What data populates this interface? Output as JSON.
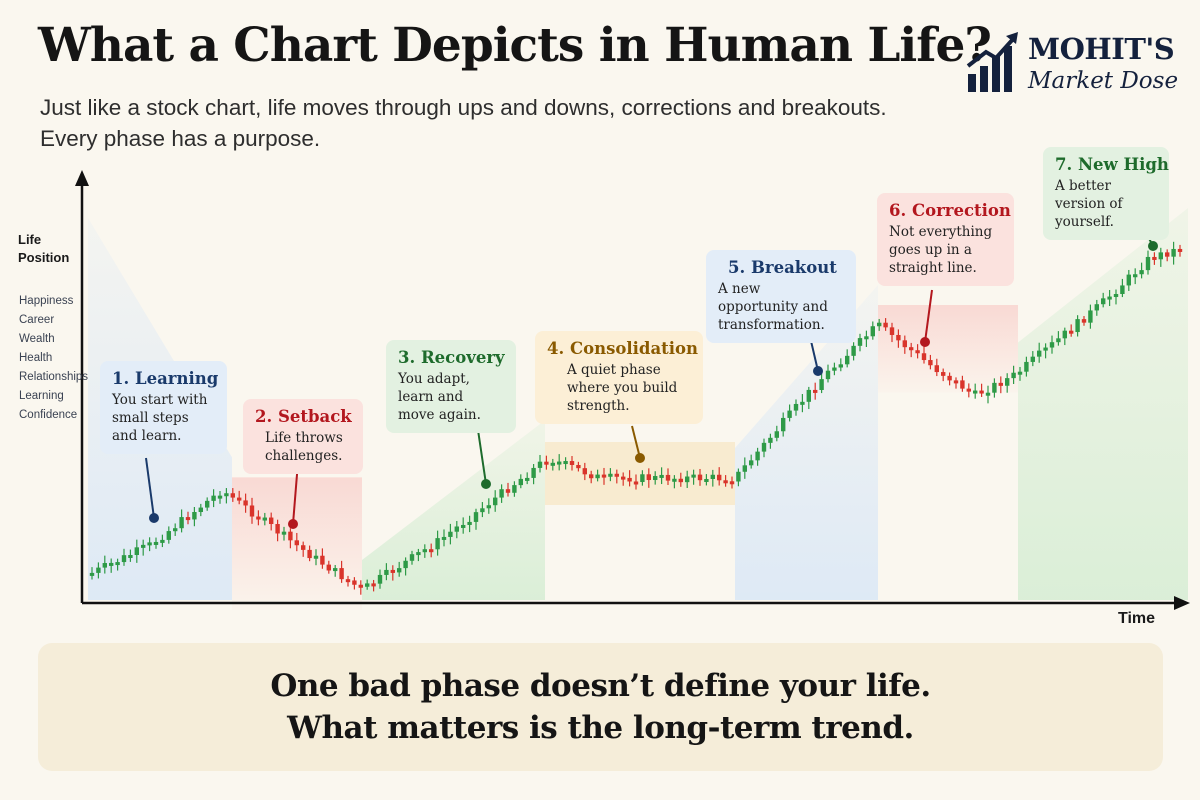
{
  "header": {
    "title": "What a Chart Depicts in Human Life?",
    "subtitle_line1": "Just like a stock chart, life moves through ups and downs, corrections and breakouts.",
    "subtitle_line2": "Every phase has a purpose."
  },
  "logo": {
    "name": "MOHIT'S",
    "sub": "Market Dose",
    "color": "#14213d"
  },
  "chart_data": {
    "type": "candlestick",
    "xlabel": "Time",
    "ylabel": "Life Position",
    "y_dimensions": [
      "Happiness",
      "Career",
      "Wealth",
      "Health",
      "Relationships",
      "Learning",
      "Confidence"
    ],
    "colors": {
      "up": "#2e9a47",
      "down": "#d9342b"
    },
    "grid": false,
    "phases": [
      {
        "id": 1,
        "title": "1. Learning",
        "desc": "You start with small steps and learn.",
        "trend": "up",
        "color": "#1a3a6b",
        "bg": "#e3edf8"
      },
      {
        "id": 2,
        "title": "2. Setback",
        "desc": "Life throws challenges.",
        "trend": "down",
        "color": "#b3171e",
        "bg": "#fbe2de"
      },
      {
        "id": 3,
        "title": "3. Recovery",
        "desc": "You adapt, learn and move again.",
        "trend": "up",
        "color": "#1e6b2c",
        "bg": "#e3f1e1"
      },
      {
        "id": 4,
        "title": "4. Consolidation",
        "desc": "A quiet phase where you build strength.",
        "trend": "sideways",
        "color": "#8a5a00",
        "bg": "#fcefd6"
      },
      {
        "id": 5,
        "title": "5. Breakout",
        "desc": "A new opportunity and transformation.",
        "trend": "up",
        "color": "#1a3a6b",
        "bg": "#e3edf8"
      },
      {
        "id": 6,
        "title": "6. Correction",
        "desc": "Not everything goes up in a straight line.",
        "trend": "down",
        "color": "#b3171e",
        "bg": "#fbe2de"
      },
      {
        "id": 7,
        "title": "7. New High",
        "desc": "A better version of yourself.",
        "trend": "up",
        "color": "#1e6b2c",
        "bg": "#e3f1e1"
      }
    ]
  },
  "footer": {
    "line1": "One bad phase doesn’t define your life.",
    "line2": "What matters is the long-term trend."
  }
}
